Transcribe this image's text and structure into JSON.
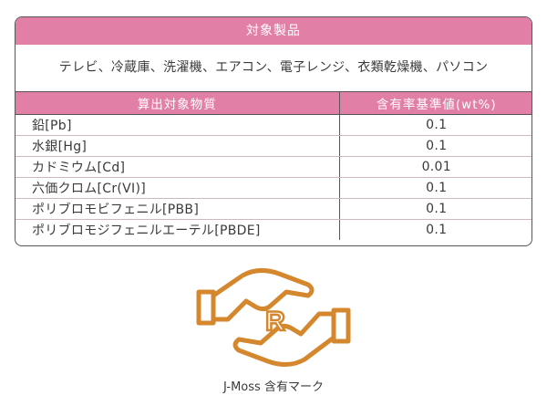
{
  "products_section": {
    "header": "対象製品",
    "items_text": "テレビ、冷蔵庫、洗濯機、エアコン、電子レンジ、衣類乾燥機、パソコン"
  },
  "substances_table": {
    "columns": [
      "算出対象物質",
      "含有率基準値(wt%)"
    ],
    "rows": [
      {
        "substance": "鉛[Pb]",
        "threshold": "0.1"
      },
      {
        "substance": "水銀[Hg]",
        "threshold": "0.1"
      },
      {
        "substance": "カドミウム[Cd]",
        "threshold": "0.01"
      },
      {
        "substance": "六価クロム[Cr(VI)]",
        "threshold": "0.1"
      },
      {
        "substance": "ポリブロモビフェニル[PBB]",
        "threshold": "0.1"
      },
      {
        "substance": "ポリブロモジフェニルエーテル[PBDE]",
        "threshold": "0.1"
      }
    ]
  },
  "logo": {
    "letter": "R",
    "caption": "J-Moss 含有マーク",
    "color": "#d4872c"
  },
  "colors": {
    "header_pink": "#e27fa6",
    "border": "#555555"
  }
}
